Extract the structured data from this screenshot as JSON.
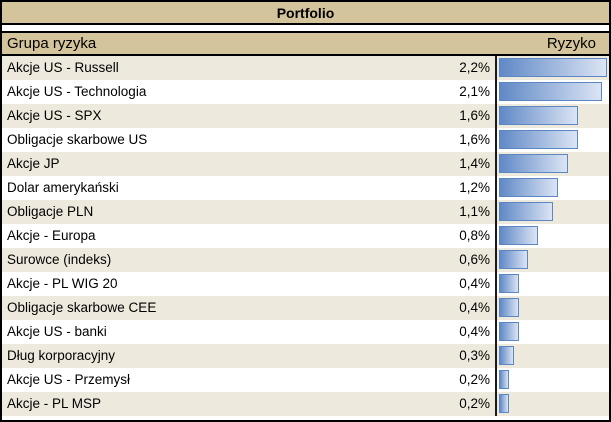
{
  "report": {
    "title": "Portfolio"
  },
  "table": {
    "columns": {
      "group": "Grupa ryzyka",
      "risk": "Ryzyko"
    },
    "rows": [
      {
        "label": "Akcje US - Russell",
        "value": "2,2%",
        "pct": 2.2
      },
      {
        "label": "Akcje US - Technologia",
        "value": "2,1%",
        "pct": 2.1
      },
      {
        "label": "Akcje US - SPX",
        "value": "1,6%",
        "pct": 1.6
      },
      {
        "label": "Obligacje skarbowe US",
        "value": "1,6%",
        "pct": 1.6
      },
      {
        "label": "Akcje JP",
        "value": "1,4%",
        "pct": 1.4
      },
      {
        "label": "Dolar amerykański",
        "value": "1,2%",
        "pct": 1.2
      },
      {
        "label": "Obligacje PLN",
        "value": "1,1%",
        "pct": 1.1
      },
      {
        "label": "Akcje - Europa",
        "value": "0,8%",
        "pct": 0.8
      },
      {
        "label": "Surowce (indeks)",
        "value": "0,6%",
        "pct": 0.6
      },
      {
        "label": "Akcje - PL WIG 20",
        "value": "0,4%",
        "pct": 0.4
      },
      {
        "label": "Obligacje skarbowe CEE",
        "value": "0,4%",
        "pct": 0.4
      },
      {
        "label": "Akcje US - banki",
        "value": "0,4%",
        "pct": 0.4
      },
      {
        "label": "Dług korporacyjny",
        "value": "0,3%",
        "pct": 0.3
      },
      {
        "label": "Akcje US - Przemysł",
        "value": "0,2%",
        "pct": 0.2
      },
      {
        "label": "Akcje - PL MSP",
        "value": "0,2%",
        "pct": 0.2
      }
    ]
  },
  "colors": {
    "header_bg": "#d4c49c",
    "row_alt_bg": "#ede9dc",
    "bar_border": "#5b87c5",
    "bar_fill_start": "#6089c6",
    "bar_fill_end": "#dbe4f4"
  },
  "chart_data": {
    "type": "bar",
    "orientation": "horizontal",
    "title": "Portfolio",
    "xlabel": "Ryzyko",
    "unit": "%",
    "decimal_separator": ",",
    "categories": [
      "Akcje US - Russell",
      "Akcje US - Technologia",
      "Akcje US - SPX",
      "Obligacje skarbowe US",
      "Akcje JP",
      "Dolar amerykański",
      "Obligacje PLN",
      "Akcje - Europa",
      "Surowce (indeks)",
      "Akcje - PL WIG 20",
      "Obligacje skarbowe CEE",
      "Akcje US - banki",
      "Dług korporacyjny",
      "Akcje US - Przemysł",
      "Akcje - PL MSP"
    ],
    "values": [
      2.2,
      2.1,
      1.6,
      1.6,
      1.4,
      1.2,
      1.1,
      0.8,
      0.6,
      0.4,
      0.4,
      0.4,
      0.3,
      0.2,
      0.2
    ],
    "value_labels": [
      "2,2%",
      "2,1%",
      "1,6%",
      "1,6%",
      "1,4%",
      "1,2%",
      "1,1%",
      "0,8%",
      "0,6%",
      "0,4%",
      "0,4%",
      "0,4%",
      "0,3%",
      "0,2%",
      "0,2%"
    ],
    "xlim": [
      0,
      2.28
    ],
    "grid": false,
    "legend": false,
    "sorted": "descending"
  }
}
